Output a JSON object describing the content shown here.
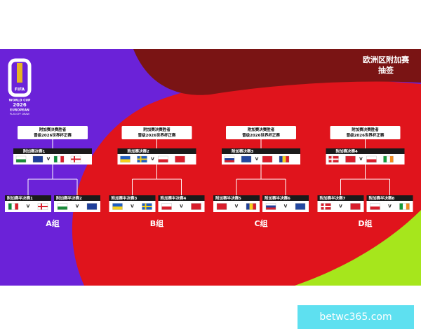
{
  "header": {
    "title": "欧洲区附加赛",
    "subtitle": "抽签"
  },
  "logo": {
    "brand": "FIFA",
    "lines": [
      "WORLD CUP",
      "2026",
      "EUROPEAN",
      "PLAY-OFF DRAW"
    ]
  },
  "vs": "V",
  "groups": [
    {
      "winner": [
        "附加赛决赛胜者",
        "晋级2026世界杯正赛"
      ],
      "final": "附加赛决赛1",
      "semis": [
        "附加赛半决赛1",
        "附加赛半决赛2"
      ],
      "label": "A组"
    },
    {
      "winner": [
        "附加赛决赛胜者",
        "晋级2026世界杯正赛"
      ],
      "final": "附加赛决赛2",
      "semis": [
        "附加赛半决赛3",
        "附加赛半决赛4"
      ],
      "label": "B组"
    },
    {
      "winner": [
        "附加赛决赛胜者",
        "晋级2026世界杯正赛"
      ],
      "final": "附加赛决赛3",
      "semis": [
        "附加赛半决赛5",
        "附加赛半决赛6"
      ],
      "label": "C组"
    },
    {
      "winner": [
        "附加赛决赛胜者",
        "晋级2026世界杯正赛"
      ],
      "final": "附加赛决赛4",
      "semis": [
        "附加赛半决赛7",
        "附加赛半决赛8"
      ],
      "label": "D组"
    }
  ],
  "watermark": "betwc365.com"
}
